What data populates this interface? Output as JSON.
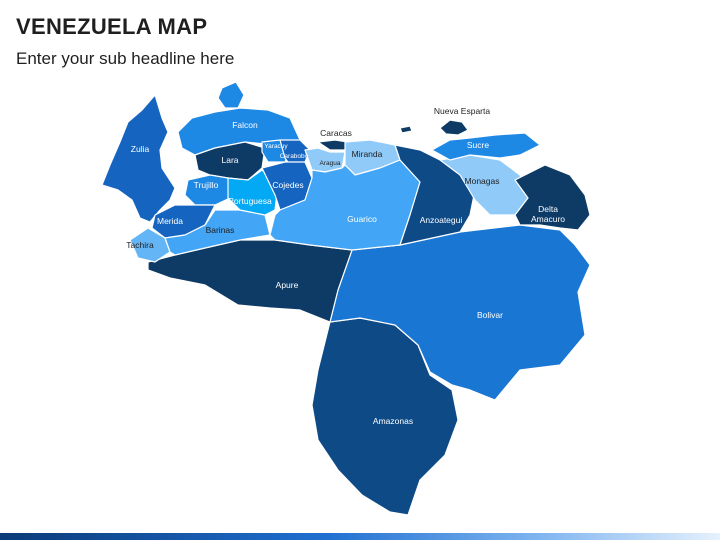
{
  "header": {
    "title": "VENEZUELA MAP",
    "subtitle": "Enter your sub headline here"
  },
  "map": {
    "states": [
      {
        "key": "zulia",
        "name": "Zulia",
        "color": "#1565c0"
      },
      {
        "key": "falcon",
        "name": "Falcon",
        "color": "#1e88e5"
      },
      {
        "key": "lara",
        "name": "Lara",
        "color": "#0d3b66"
      },
      {
        "key": "trujillo",
        "name": "Trujillo",
        "color": "#1e88e5"
      },
      {
        "key": "merida",
        "name": "Merida",
        "color": "#1565c0"
      },
      {
        "key": "tachira",
        "name": "Tachira",
        "color": "#64b5f6"
      },
      {
        "key": "portuguesa",
        "name": "Portuguesa",
        "color": "#03a9f4"
      },
      {
        "key": "barinas",
        "name": "Barinas",
        "color": "#42a5f5"
      },
      {
        "key": "yaracuy",
        "name": "Yaracuy",
        "color": "#1e88e5"
      },
      {
        "key": "carabobo",
        "name": "Carabobo",
        "color": "#1565c0"
      },
      {
        "key": "cojedes",
        "name": "Cojedes",
        "color": "#1565c0"
      },
      {
        "key": "aragua",
        "name": "Aragua",
        "color": "#90caf9"
      },
      {
        "key": "caracas",
        "name": "Caracas",
        "color": "#0d3b66"
      },
      {
        "key": "miranda",
        "name": "Miranda",
        "color": "#90caf9"
      },
      {
        "key": "guarico",
        "name": "Guarico",
        "color": "#42a5f5"
      },
      {
        "key": "anzoategui",
        "name": "Anzoategui",
        "color": "#0d4a86"
      },
      {
        "key": "monagas",
        "name": "Monagas",
        "color": "#90caf9"
      },
      {
        "key": "sucre",
        "name": "Sucre",
        "color": "#1e88e5"
      },
      {
        "key": "nueva_esparta",
        "name": "Nueva Esparta",
        "color": "#0d3b66"
      },
      {
        "key": "delta_amacuro",
        "name": "Delta\nAmacuro",
        "color": "#0d3b66"
      },
      {
        "key": "apure",
        "name": "Apure",
        "color": "#0d3b66"
      },
      {
        "key": "bolivar",
        "name": "Bolivar",
        "color": "#1976d2"
      },
      {
        "key": "amazonas",
        "name": "Amazonas",
        "color": "#0d4a86"
      }
    ]
  }
}
